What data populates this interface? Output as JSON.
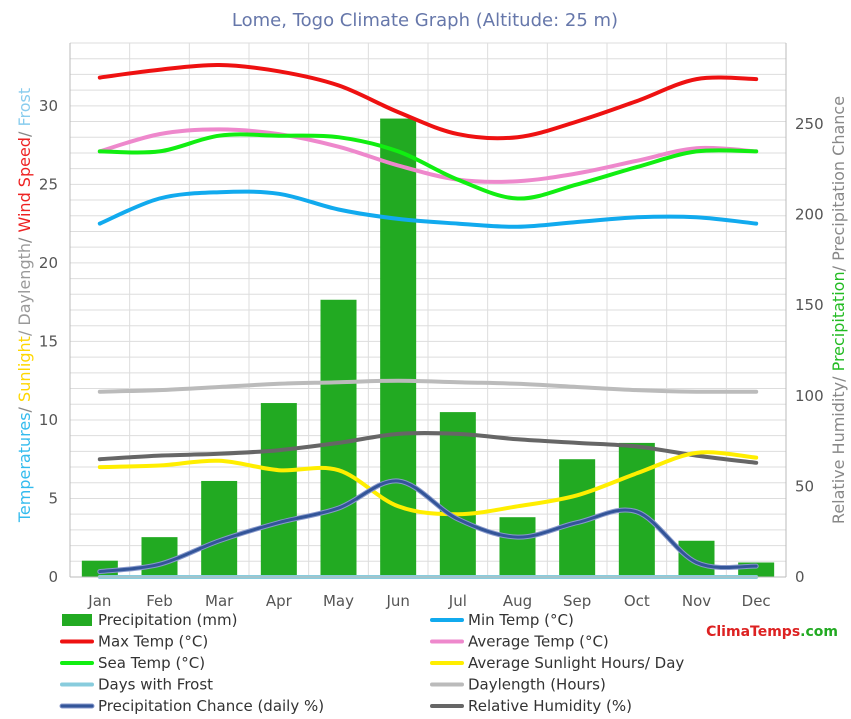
{
  "chart_data": {
    "type": "bar",
    "title": "Lome, Togo Climate Graph (Altitude: 25 m)",
    "categories": [
      "Jan",
      "Feb",
      "Mar",
      "Apr",
      "May",
      "Jun",
      "Jul",
      "Aug",
      "Sep",
      "Oct",
      "Nov",
      "Dec"
    ],
    "y_left": {
      "ticks": [
        "0",
        "5",
        "10",
        "15",
        "20",
        "25",
        "30"
      ],
      "range": [
        0,
        34
      ],
      "label_parts": [
        {
          "text": "Temperatures",
          "color": "#33bbee"
        },
        {
          "text": "/ ",
          "color": "#888888"
        },
        {
          "text": "Sunlight",
          "color": "#ffd700"
        },
        {
          "text": "/ Daylength",
          "color": "#999999"
        },
        {
          "text": "/ ",
          "color": "#888888"
        },
        {
          "text": "Wind Speed",
          "color": "#ee2222"
        },
        {
          "text": "/ ",
          "color": "#888888"
        },
        {
          "text": "Frost",
          "color": "#88ccee"
        }
      ]
    },
    "y_right": {
      "ticks": [
        "0",
        "50",
        "100",
        "150",
        "200",
        "250"
      ],
      "range": [
        0,
        294.7
      ],
      "label_parts": [
        {
          "text": "Relative Humidity",
          "color": "#888888"
        },
        {
          "text": "/ ",
          "color": "#888888"
        },
        {
          "text": "Precipitation",
          "color": "#22bb22"
        },
        {
          "text": "/ Precipitation Chance",
          "color": "#888888"
        }
      ]
    },
    "grid": true,
    "legend_position": "bottom",
    "bars": {
      "name": "Precipitation (mm)",
      "axis": "right",
      "color": "#22aa22",
      "values": [
        9,
        22,
        53,
        96,
        153,
        253,
        91,
        33,
        65,
        74,
        20,
        8
      ]
    },
    "series": [
      {
        "name": "Max Temp (°C)",
        "axis": "left",
        "color": "#ee1111",
        "values": [
          31.8,
          32.3,
          32.6,
          32.2,
          31.3,
          29.6,
          28.2,
          28.0,
          29.0,
          30.3,
          31.7,
          31.7
        ]
      },
      {
        "name": "Average Temp (°C)",
        "axis": "left",
        "color": "#ee88cc",
        "values": [
          27.1,
          28.2,
          28.5,
          28.2,
          27.4,
          26.2,
          25.3,
          25.2,
          25.7,
          26.5,
          27.3,
          27.1
        ]
      },
      {
        "name": "Sea Temp (°C)",
        "axis": "left",
        "color": "#11ee11",
        "values": [
          27.1,
          27.1,
          28.1,
          28.1,
          28.0,
          27.1,
          25.3,
          24.1,
          25.0,
          26.1,
          27.1,
          27.1
        ]
      },
      {
        "name": "Min Temp (°C)",
        "axis": "left",
        "color": "#11aaee",
        "values": [
          22.5,
          24.1,
          24.5,
          24.4,
          23.4,
          22.8,
          22.5,
          22.3,
          22.6,
          22.9,
          22.9,
          22.5
        ]
      },
      {
        "name": "Daylength (Hours)",
        "axis": "left",
        "color": "#bbbbbb",
        "values": [
          11.8,
          11.9,
          12.1,
          12.3,
          12.4,
          12.5,
          12.4,
          12.3,
          12.1,
          11.9,
          11.8,
          11.8
        ]
      },
      {
        "name": "Average Sunlight Hours/ Day",
        "axis": "left",
        "color": "#ffee00",
        "values": [
          7.0,
          7.1,
          7.4,
          6.8,
          6.8,
          4.5,
          4.0,
          4.5,
          5.2,
          6.6,
          7.9,
          7.6
        ]
      },
      {
        "name": "Days with Frost",
        "axis": "left",
        "color": "#88ccdd",
        "values": [
          0,
          0,
          0,
          0,
          0,
          0,
          0,
          0,
          0,
          0,
          0,
          0
        ]
      },
      {
        "name": "Relative Humidity (%)",
        "axis": "right",
        "color": "#666666",
        "values": [
          65,
          67,
          68,
          70,
          74,
          79,
          79,
          76,
          74,
          72,
          67,
          63
        ]
      },
      {
        "name": "Precipitation Chance (daily %)",
        "axis": "right",
        "color": "#335599",
        "values": [
          3,
          7,
          20,
          30,
          38,
          53,
          32,
          22,
          30,
          36,
          8,
          6
        ]
      }
    ],
    "legend_order": [
      "Precipitation (mm)",
      "Min Temp (°C)",
      "Max Temp (°C)",
      "Average Temp (°C)",
      "Sea Temp (°C)",
      "Average Sunlight Hours/ Day",
      "Days with Frost",
      "Daylength (Hours)",
      "Precipitation Chance (daily %)",
      "Relative Humidity (%)"
    ]
  },
  "watermark": {
    "parts": [
      {
        "text": "Clima",
        "color": "#dd2222"
      },
      {
        "text": "Temps",
        "color": "#dd2222"
      },
      {
        "text": ".com",
        "color": "#22aa22"
      }
    ]
  }
}
